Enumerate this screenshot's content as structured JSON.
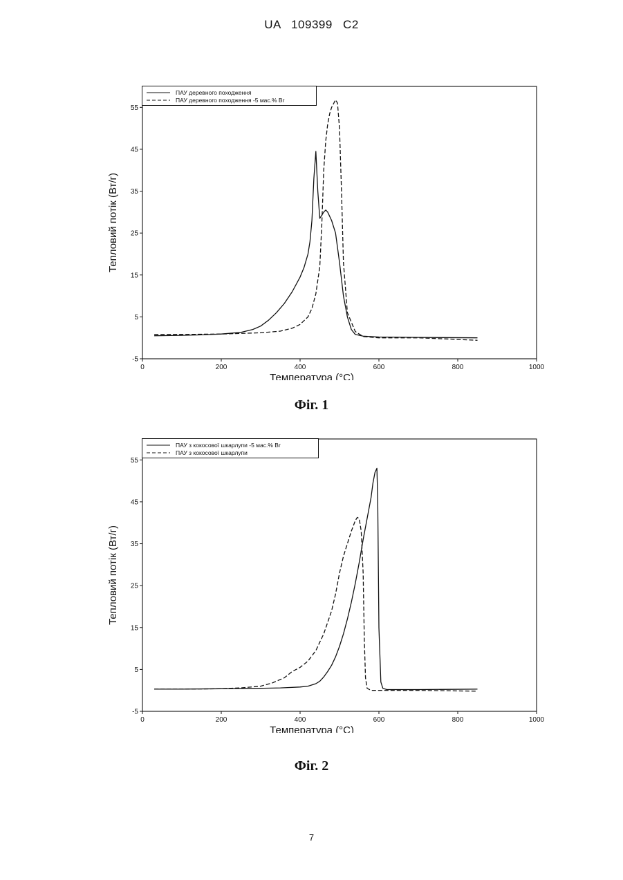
{
  "header": {
    "text": "UA   109399   C2"
  },
  "page_number": "7",
  "chart_data": [
    {
      "type": "line",
      "caption": "Фіг. 1",
      "xlabel": "Температура (°C)",
      "ylabel": "Тепловий потік (Вт/г)",
      "xlim": [
        0,
        1000
      ],
      "ylim": [
        -5,
        60
      ],
      "xticks": [
        0,
        200,
        400,
        600,
        800,
        1000
      ],
      "yticks": [
        -5,
        5,
        15,
        25,
        35,
        45,
        55
      ],
      "grid": false,
      "legend_position": "top-left",
      "series": [
        {
          "name": "ПАУ деревного походження",
          "style": "solid",
          "x": [
            30,
            100,
            150,
            200,
            250,
            280,
            300,
            320,
            340,
            360,
            380,
            400,
            410,
            420,
            425,
            430,
            435,
            440,
            445,
            450,
            460,
            465,
            470,
            480,
            490,
            500,
            510,
            520,
            530,
            540,
            560,
            600,
            700,
            850
          ],
          "y": [
            0.5,
            0.6,
            0.7,
            0.9,
            1.3,
            2.0,
            2.8,
            4.2,
            6.0,
            8.2,
            11.0,
            14.5,
            16.8,
            20.0,
            23.0,
            28.0,
            38.0,
            44.5,
            35.0,
            28.5,
            30.0,
            30.5,
            30.0,
            28.0,
            25.0,
            18.0,
            10.0,
            5.0,
            2.0,
            0.8,
            0.4,
            0.2,
            0.1,
            0.0
          ]
        },
        {
          "name": "ПАУ деревного походження -5 мас.% Br",
          "style": "dashed",
          "x": [
            30,
            100,
            200,
            300,
            350,
            380,
            400,
            420,
            430,
            440,
            450,
            455,
            460,
            465,
            470,
            475,
            480,
            490,
            495,
            500,
            505,
            510,
            520,
            540,
            560,
            600,
            700,
            780,
            850
          ],
          "y": [
            0.8,
            0.8,
            0.9,
            1.2,
            1.6,
            2.3,
            3.2,
            5.0,
            7.0,
            10.5,
            17.0,
            27.0,
            40.0,
            47.0,
            51.0,
            53.5,
            55.0,
            56.8,
            56.0,
            50.0,
            35.0,
            18.0,
            6.0,
            1.5,
            0.3,
            0.0,
            0.0,
            -0.3,
            -0.6
          ]
        }
      ]
    },
    {
      "type": "line",
      "caption": "Фіг. 2",
      "xlabel": "Температура (°C)",
      "ylabel": "Тепловий потік (Вт/г)",
      "xlim": [
        0,
        1000
      ],
      "ylim": [
        -5,
        60
      ],
      "xticks": [
        0,
        200,
        400,
        600,
        800,
        1000
      ],
      "yticks": [
        -5,
        5,
        15,
        25,
        35,
        45,
        55
      ],
      "grid": false,
      "legend_position": "top-left",
      "series": [
        {
          "name": "ПАУ з кокосової шкарлупи -5 мас.% Br",
          "style": "solid",
          "x": [
            30,
            100,
            200,
            300,
            350,
            400,
            420,
            440,
            450,
            460,
            470,
            480,
            490,
            500,
            510,
            520,
            530,
            540,
            550,
            560,
            570,
            580,
            585,
            590,
            595,
            597,
            600,
            605,
            610,
            620,
            700,
            850
          ],
          "y": [
            0.3,
            0.3,
            0.4,
            0.5,
            0.6,
            0.8,
            1.0,
            1.6,
            2.2,
            3.2,
            4.5,
            6.0,
            8.0,
            10.5,
            13.5,
            17.0,
            21.0,
            25.5,
            30.5,
            36.0,
            41.0,
            46.0,
            49.5,
            52.0,
            53.0,
            45.0,
            15.0,
            2.0,
            0.5,
            0.2,
            0.2,
            0.3
          ]
        },
        {
          "name": "ПАУ з кокосової шкарлупи",
          "style": "dashed",
          "x": [
            30,
            100,
            200,
            250,
            300,
            330,
            360,
            380,
            400,
            420,
            440,
            460,
            480,
            490,
            500,
            510,
            520,
            530,
            540,
            545,
            550,
            555,
            560,
            563,
            566,
            570,
            580,
            600,
            700,
            850
          ],
          "y": [
            0.3,
            0.3,
            0.4,
            0.6,
            1.0,
            1.8,
            3.0,
            4.5,
            5.5,
            7.0,
            9.5,
            13.5,
            19.0,
            23.0,
            28.0,
            32.0,
            35.0,
            38.0,
            40.5,
            41.3,
            41.0,
            38.0,
            28.0,
            12.0,
            3.0,
            0.5,
            0.0,
            0.0,
            0.0,
            -0.2
          ]
        }
      ]
    }
  ]
}
